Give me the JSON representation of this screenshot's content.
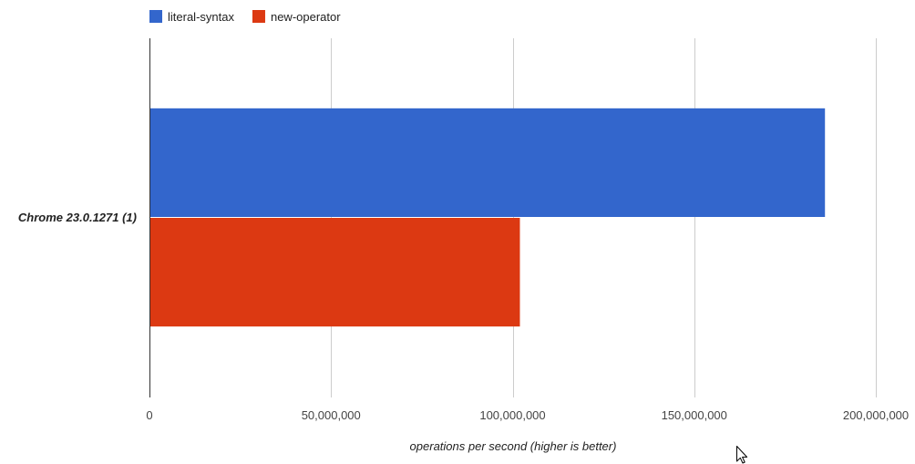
{
  "chart_data": {
    "type": "bar",
    "orientation": "horizontal",
    "categories": [
      "Chrome 23.0.1271 (1)"
    ],
    "series": [
      {
        "name": "literal-syntax",
        "values": [
          186000000
        ],
        "color": "#3366CC"
      },
      {
        "name": "new-operator",
        "values": [
          102000000
        ],
        "color": "#DC3912"
      }
    ],
    "xlabel": "operations per second (higher is better)",
    "ylabel": "",
    "xlim": [
      0,
      200000000
    ],
    "x_ticks": [
      0,
      50000000,
      100000000,
      150000000,
      200000000
    ],
    "x_tick_labels": [
      "0",
      "50,000,000",
      "100,000,000",
      "150,000,000",
      "200,000,000"
    ],
    "grid": true,
    "legend_position": "top-left"
  }
}
